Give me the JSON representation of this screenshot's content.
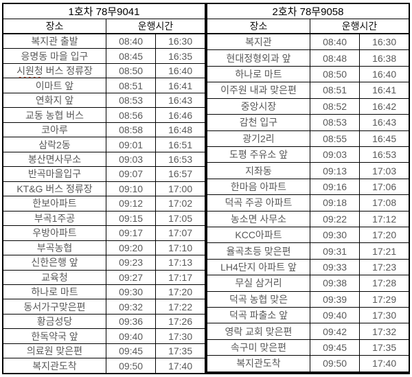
{
  "colors": {
    "border": "#000000",
    "title_text": "#000000",
    "header_text": "#111111",
    "body_text": "#595959",
    "spellcheck_underline": "#cf4a2b"
  },
  "tables": [
    {
      "title": "1호차 78무9041",
      "col_place": "장소",
      "col_time": "운행시간",
      "rows": [
        {
          "place": "복지관 출발",
          "am": "08:40",
          "pm": "16:30"
        },
        {
          "place": "응명동 마을 입구",
          "am": "08:45",
          "pm": "16:35"
        },
        {
          "place": "시원청 버스 정류장",
          "spellcheck_word": "시원청",
          "am": "08:50",
          "pm": "16:40"
        },
        {
          "place": "이마트 앞",
          "am": "08:51",
          "pm": "16:41"
        },
        {
          "place": "연화지 앞",
          "am": "08:53",
          "pm": "16:43"
        },
        {
          "place": "교동 농협 버스",
          "am": "08:56",
          "pm": "16:46"
        },
        {
          "place": "코아루",
          "am": "08:58",
          "pm": "16:48"
        },
        {
          "place": "삼락2동",
          "am": "09:01",
          "pm": "16:51"
        },
        {
          "place": "봉산면사무소",
          "am": "09:03",
          "pm": "16:53"
        },
        {
          "place": "반곡마을입구",
          "am": "09:07",
          "pm": "16:57"
        },
        {
          "place": "KT&G 버스 정류장",
          "am": "09:10",
          "pm": "17:00"
        },
        {
          "place": "한보아파트",
          "am": "09:12",
          "pm": "17:02"
        },
        {
          "place": "부곡1주공",
          "am": "09:15",
          "pm": "17:05"
        },
        {
          "place": "우방아파트",
          "am": "09:17",
          "pm": "17:07"
        },
        {
          "place": "부곡농협",
          "am": "09:20",
          "pm": "17:10"
        },
        {
          "place": "신한은행 앞",
          "am": "09:23",
          "pm": "17:13"
        },
        {
          "place": "교육청",
          "am": "09:27",
          "pm": "17:17"
        },
        {
          "place": "하나로 마트",
          "am": "09:30",
          "pm": "17:20"
        },
        {
          "place": "동서가구맞은편",
          "am": "09:32",
          "pm": "17:22"
        },
        {
          "place": "황금성당",
          "am": "09:36",
          "pm": "17:26"
        },
        {
          "place": "한독약국 앞",
          "am": "09:40",
          "pm": "17:30"
        },
        {
          "place": "의료원 맞은편",
          "am": "09:45",
          "pm": "17:35"
        },
        {
          "place": "복지관도착",
          "am": "09:50",
          "pm": "17:40"
        }
      ]
    },
    {
      "title": "2호차 78무9058",
      "col_place": "장소",
      "col_time": "운행시간",
      "rows": [
        {
          "place": "복지관",
          "am": "08:40",
          "pm": "16:30"
        },
        {
          "place": "현대정형외과 앞",
          "am": "08:48",
          "pm": "16:38"
        },
        {
          "place": "하나로 마트",
          "am": "08:50",
          "pm": "16:40"
        },
        {
          "place": "이주원 내과 맞은편",
          "am": "08:51",
          "pm": "16:41"
        },
        {
          "place": "중앙시장",
          "am": "08:52",
          "pm": "16:42"
        },
        {
          "place": "감천 입구",
          "am": "08:53",
          "pm": "16:43"
        },
        {
          "place": "광기2리",
          "am": "08:55",
          "pm": "16:45"
        },
        {
          "place": "도평 주유소 앞",
          "am": "09:03",
          "pm": "16:53"
        },
        {
          "place": "지좌동",
          "am": "09:13",
          "pm": "17:03"
        },
        {
          "place": "한마음 아파트",
          "am": "09:16",
          "pm": "17:06"
        },
        {
          "place": "덕곡 주공 아파트",
          "am": "09:18",
          "pm": "17:08"
        },
        {
          "place": "농소면 사무소",
          "am": "09:22",
          "pm": "17:12"
        },
        {
          "place": "KCC아파트",
          "am": "09:30",
          "pm": "17:20"
        },
        {
          "place": "율곡초등 맞은편",
          "am": "09:31",
          "pm": "17:21"
        },
        {
          "place": "LH4단지 아파트 앞",
          "am": "09:33",
          "pm": "17:23"
        },
        {
          "place": "무실 삼거리",
          "am": "09:38",
          "pm": "17:28"
        },
        {
          "place": "덕곡 농협 맞은",
          "am": "09:39",
          "pm": "17:29"
        },
        {
          "place": "덕곡 파출소 앞",
          "am": "09:40",
          "pm": "17:30"
        },
        {
          "place": "영락 교회 맞은편",
          "am": "09:42",
          "pm": "17:32"
        },
        {
          "place": "속구미 맞은편",
          "am": "09:45",
          "pm": "17:35"
        },
        {
          "place": "복지관도착",
          "am": "09:50",
          "pm": "17:40"
        },
        {
          "place": "",
          "am": "",
          "pm": ""
        },
        {
          "place": "",
          "am": "",
          "pm": ""
        }
      ]
    }
  ]
}
